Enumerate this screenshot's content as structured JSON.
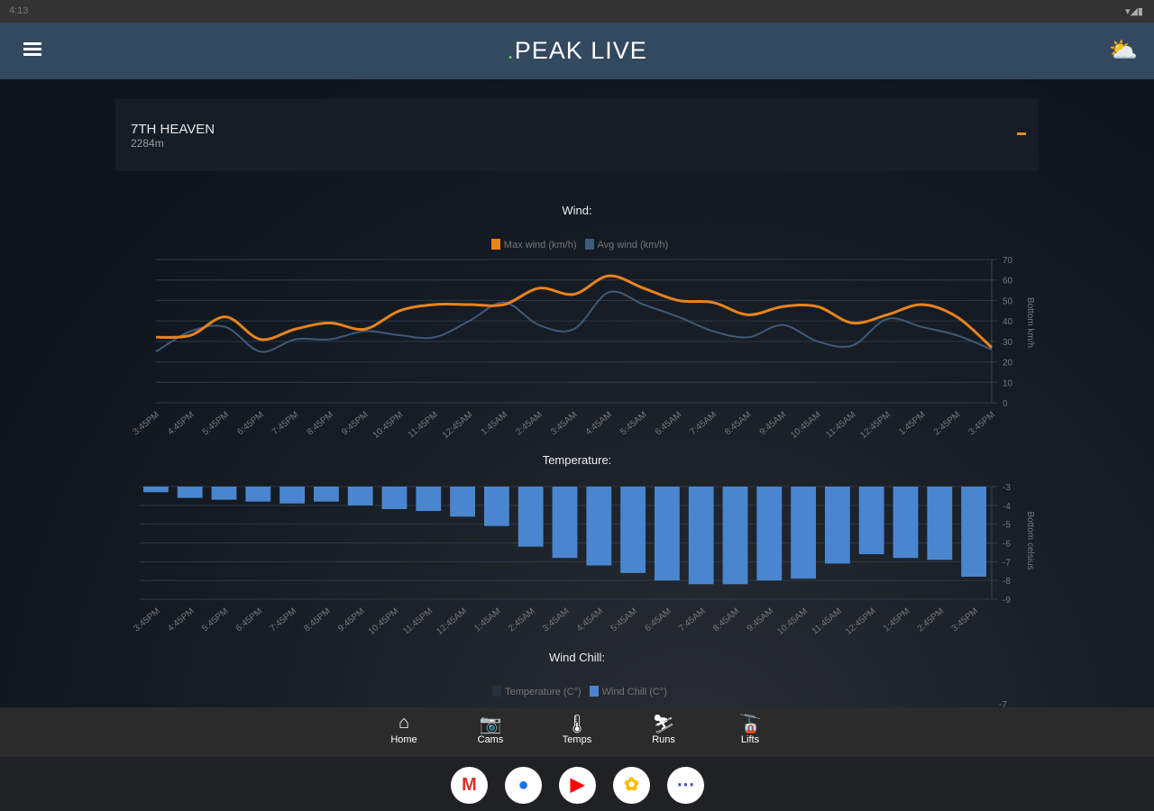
{
  "status": {
    "time": "4:13",
    "icons": "▾◢▮"
  },
  "header": {
    "logo_dot": ".",
    "logo": "PEAK LIVE",
    "menu_icon": "hamburger-icon",
    "weather_icon": "sun-cloud-icon"
  },
  "station": {
    "name": "7TH HEAVEN",
    "elevation": "2284m"
  },
  "wind_chart_title": "Wind:",
  "temp_chart_title": "Temperature:",
  "chill_chart_title": "Wind Chill:",
  "chill_legend": [
    "Temperature (C°)",
    "Wind Chill (C°)"
  ],
  "chill_axis_top": "-7",
  "colors": {
    "max": "#e8831c",
    "avg": "#3f5a78",
    "bar": "#4a86d0"
  },
  "chart_data": [
    {
      "type": "line",
      "title": "Wind:",
      "ylabel": "Bottom km/h",
      "ylim": [
        0,
        70
      ],
      "yticks": [
        0,
        10,
        20,
        30,
        40,
        50,
        60,
        70
      ],
      "categories": [
        "3:45PM",
        "4:45PM",
        "5:45PM",
        "6:45PM",
        "7:45PM",
        "8:45PM",
        "9:45PM",
        "10:45PM",
        "11:45PM",
        "12:45AM",
        "1:45AM",
        "2:45AM",
        "3:45AM",
        "4:45AM",
        "5:45AM",
        "6:45AM",
        "7:45AM",
        "8:45AM",
        "9:45AM",
        "10:45AM",
        "11:45AM",
        "12:45PM",
        "1:45PM",
        "2:45PM",
        "3:45PM"
      ],
      "series": [
        {
          "name": "Max wind (km/h)",
          "values": [
            32,
            33,
            42,
            31,
            36,
            39,
            36,
            45,
            48,
            48,
            48,
            56,
            53,
            62,
            56,
            50,
            49,
            43,
            47,
            47,
            39,
            43,
            48,
            42,
            27
          ]
        },
        {
          "name": "Avg wind (km/h)",
          "values": [
            25,
            35,
            37,
            25,
            31,
            31,
            35,
            33,
            32,
            40,
            49,
            38,
            36,
            54,
            48,
            42,
            35,
            32,
            38,
            30,
            28,
            41,
            37,
            33,
            26
          ]
        }
      ],
      "legend": "top-center",
      "grid": true
    },
    {
      "type": "bar",
      "title": "Temperature:",
      "ylabel": "Bottom celsius",
      "ylim": [
        -9,
        -3
      ],
      "yticks": [
        -3,
        -4,
        -5,
        -6,
        -7,
        -8,
        -9
      ],
      "categories": [
        "3:45PM",
        "4:45PM",
        "5:45PM",
        "6:45PM",
        "7:45PM",
        "8:45PM",
        "9:45PM",
        "10:45PM",
        "11:45PM",
        "12:45AM",
        "1:45AM",
        "2:45AM",
        "3:45AM",
        "4:45AM",
        "5:45AM",
        "6:45AM",
        "7:45AM",
        "8:45AM",
        "9:45AM",
        "10:45AM",
        "11:45AM",
        "12:45PM",
        "1:45PM",
        "2:45PM",
        "3:45PM"
      ],
      "values": [
        -3.3,
        -3.6,
        -3.7,
        -3.8,
        -3.9,
        -3.8,
        -4.0,
        -4.2,
        -4.3,
        -4.6,
        -5.1,
        -6.2,
        -6.8,
        -7.2,
        -7.6,
        -8.0,
        -8.2,
        -8.2,
        -8.0,
        -7.9,
        -7.1,
        -6.6,
        -6.8,
        -6.9,
        -7.8
      ],
      "grid": true
    }
  ],
  "nav": [
    {
      "label": "Home",
      "icon": "⌂"
    },
    {
      "label": "Cams",
      "icon": "📷"
    },
    {
      "label": "Temps",
      "icon": "🌡"
    },
    {
      "label": "Runs",
      "icon": "⛷"
    },
    {
      "label": "Lifts",
      "icon": "🚡"
    }
  ],
  "dock": [
    {
      "name": "gmail",
      "glyph": "M",
      "color": "#d93025"
    },
    {
      "name": "chrome",
      "glyph": "●",
      "color": "#1a73e8"
    },
    {
      "name": "youtube",
      "glyph": "▶",
      "color": "#ff0000"
    },
    {
      "name": "photos",
      "glyph": "✿",
      "color": "#fbbc04"
    },
    {
      "name": "apps",
      "glyph": "⋯",
      "color": "#3c4fb8"
    }
  ]
}
